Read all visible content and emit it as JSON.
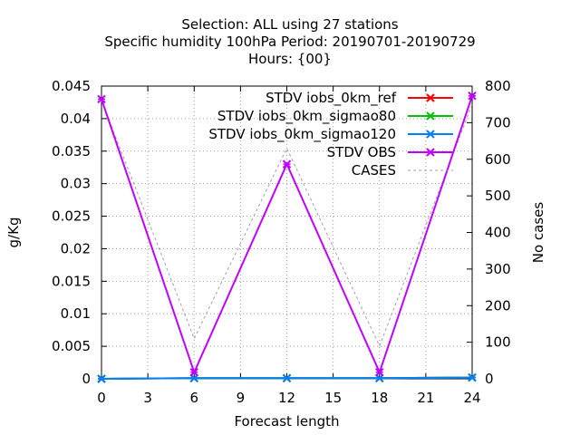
{
  "chart_data": {
    "type": "line",
    "title": [
      "Selection: ALL using    27 stations",
      "Specific humidity 100hPa   Period: 20190701-20190729",
      "Hours: {00}"
    ],
    "xlabel": "Forecast length",
    "ylabel": "g/Kg",
    "y2label": "No cases",
    "xlim": [
      0,
      24
    ],
    "ylim": [
      0,
      0.045
    ],
    "y2lim": [
      0,
      800
    ],
    "xticks": [
      "0",
      "3",
      "6",
      "9",
      "12",
      "15",
      "18",
      "21",
      "24"
    ],
    "yticks": [
      "0",
      "0.005",
      "0.01",
      "0.015",
      "0.02",
      "0.025",
      "0.03",
      "0.035",
      "0.04",
      "0.045"
    ],
    "y2ticks": [
      "0",
      "100",
      "200",
      "300",
      "400",
      "500",
      "600",
      "700",
      "800"
    ],
    "grid": true,
    "legend_position": "top-right",
    "x": [
      0,
      6,
      12,
      18,
      24
    ],
    "series": [
      {
        "name": "STDV iobs_0km_ref",
        "color": "#ff0000",
        "axis": "y1",
        "marker": "x",
        "values": [
          0.0,
          0.0001,
          0.0001,
          0.0001,
          0.0002
        ]
      },
      {
        "name": "STDV iobs_0km_sigmao80",
        "color": "#00c000",
        "axis": "y1",
        "marker": "x",
        "values": [
          0.0,
          0.0001,
          0.0001,
          0.0001,
          0.0002
        ]
      },
      {
        "name": "STDV iobs_0km_sigmao120",
        "color": "#0080ff",
        "axis": "y1",
        "marker": "x",
        "values": [
          0.0,
          0.0001,
          0.0001,
          0.0001,
          0.0002
        ]
      },
      {
        "name": "STDV OBS",
        "color": "#c000ff",
        "axis": "y1",
        "marker": "x",
        "values": [
          0.043,
          0.001,
          0.033,
          0.001,
          0.0435
        ]
      },
      {
        "name": "CASES",
        "color": "#a0a0a0",
        "axis": "y2",
        "marker": "none",
        "dash": true,
        "values": [
          760,
          110,
          630,
          90,
          750
        ]
      }
    ]
  }
}
